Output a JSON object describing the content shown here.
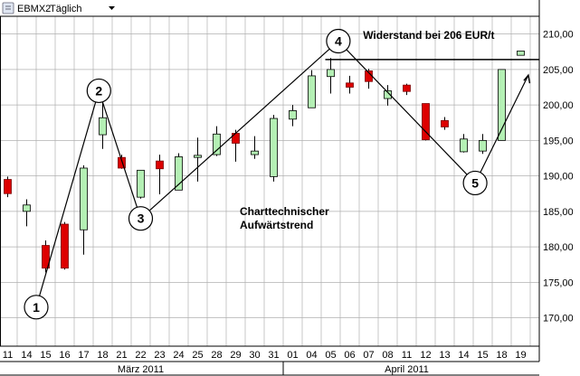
{
  "chart_data": {
    "type": "candlestick",
    "header": {
      "symbol": "EBMX2",
      "interval": "Täglich",
      "dropdown_icon": "triangle-down-icon"
    },
    "y_axis": {
      "min": 166.0,
      "max": 212.5,
      "position": "right",
      "ticks": [
        210,
        205,
        200,
        195,
        190,
        185,
        180,
        175,
        170
      ],
      "tick_labels": [
        "210,00",
        "205,00",
        "200,00",
        "195,00",
        "190,00",
        "185,00",
        "180,00",
        "175,00",
        "170,00"
      ]
    },
    "x_axis": {
      "day_labels": [
        "11",
        "14",
        "15",
        "16",
        "17",
        "18",
        "21",
        "22",
        "23",
        "24",
        "25",
        "28",
        "29",
        "30",
        "31",
        "01",
        "04",
        "05",
        "06",
        "07",
        "08",
        "11",
        "12",
        "13",
        "14",
        "15",
        "18",
        "19"
      ],
      "months": [
        {
          "label": "März 2011",
          "start_index": 0,
          "end_index": 14
        },
        {
          "label": "April 2011",
          "start_index": 15,
          "end_index": 27
        }
      ]
    },
    "grid": true,
    "colors": {
      "up": "#b4f0b4",
      "down": "#dd0000",
      "outline": "#000000",
      "grid": "#b0b0b0"
    },
    "candles": [
      {
        "date": "11",
        "open": 189.5,
        "high": 189.9,
        "low": 187.0,
        "close": 187.5
      },
      {
        "date": "14",
        "open": 185.0,
        "high": 186.7,
        "low": 182.9,
        "close": 185.9
      },
      {
        "date": "15",
        "open": 180.2,
        "high": 180.9,
        "low": 176.4,
        "close": 177.0
      },
      {
        "date": "16",
        "open": 183.2,
        "high": 183.5,
        "low": 176.8,
        "close": 177.0
      },
      {
        "date": "17",
        "open": 182.4,
        "high": 191.5,
        "low": 178.9,
        "close": 191.1
      },
      {
        "date": "18",
        "open": 195.8,
        "high": 201.0,
        "low": 193.8,
        "close": 198.2
      },
      {
        "date": "21",
        "open": 192.6,
        "high": 193.0,
        "low": 191.0,
        "close": 191.1
      },
      {
        "date": "22",
        "open": 187.0,
        "high": 190.8,
        "low": 186.8,
        "close": 190.8
      },
      {
        "date": "23",
        "open": 192.1,
        "high": 193.0,
        "low": 187.4,
        "close": 191.0
      },
      {
        "date": "24",
        "open": 188.0,
        "high": 193.2,
        "low": 188.0,
        "close": 192.7
      },
      {
        "date": "25",
        "open": 192.6,
        "high": 195.4,
        "low": 189.2,
        "close": 192.9
      },
      {
        "date": "28",
        "open": 193.0,
        "high": 197.0,
        "low": 192.8,
        "close": 195.9
      },
      {
        "date": "29",
        "open": 196.0,
        "high": 196.5,
        "low": 192.0,
        "close": 194.6
      },
      {
        "date": "30",
        "open": 193.0,
        "high": 195.6,
        "low": 192.4,
        "close": 193.5
      },
      {
        "date": "31",
        "open": 189.9,
        "high": 198.6,
        "low": 189.2,
        "close": 198.1
      },
      {
        "date": "01",
        "open": 198.0,
        "high": 200.0,
        "low": 197.0,
        "close": 199.2
      },
      {
        "date": "04",
        "open": 199.6,
        "high": 204.9,
        "low": 199.6,
        "close": 204.1
      },
      {
        "date": "05",
        "open": 204.0,
        "high": 206.6,
        "low": 201.6,
        "close": 205.0
      },
      {
        "date": "06",
        "open": 203.1,
        "high": 204.1,
        "low": 201.6,
        "close": 202.5
      },
      {
        "date": "07",
        "open": 204.8,
        "high": 205.1,
        "low": 202.3,
        "close": 203.3
      },
      {
        "date": "08",
        "open": 200.9,
        "high": 202.8,
        "low": 199.9,
        "close": 202.0
      },
      {
        "date": "11",
        "open": 202.8,
        "high": 203.0,
        "low": 201.4,
        "close": 201.9
      },
      {
        "date": "12",
        "open": 200.2,
        "high": 200.2,
        "low": 195.0,
        "close": 195.1
      },
      {
        "date": "13",
        "open": 197.8,
        "high": 198.3,
        "low": 196.5,
        "close": 196.9
      },
      {
        "date": "14",
        "open": 193.4,
        "high": 195.9,
        "low": 193.3,
        "close": 195.2
      },
      {
        "date": "15",
        "open": 193.5,
        "high": 195.9,
        "low": 193.1,
        "close": 195.0
      },
      {
        "date": "18",
        "open": 195.0,
        "high": 205.0,
        "low": 195.0,
        "close": 205.0
      },
      {
        "date": "19",
        "open": 207.0,
        "high": 207.6,
        "low": 207.0,
        "close": 207.6
      }
    ],
    "resistance": {
      "label": "Widerstand bei 206 EUR/t",
      "value": 206.4,
      "from_index": 17,
      "to_index": 27
    },
    "annotation": {
      "line1": "Charttechnischer",
      "line2": "Aufwärtstrend",
      "x_index": 16.5,
      "y_value": 184.5
    },
    "trend_path": [
      {
        "label": "1",
        "x_index": 1.5,
        "y_value": 171.5
      },
      {
        "label": "2",
        "x_index": 4.8,
        "y_value": 202.0
      },
      {
        "label": "3",
        "x_index": 7.0,
        "y_value": 184.0
      },
      {
        "label": "4",
        "x_index": 17.4,
        "y_value": 209.0
      },
      {
        "label": "5",
        "x_index": 24.6,
        "y_value": 189.0
      },
      {
        "label": "",
        "x_index": 27.4,
        "y_value": 204.2
      }
    ]
  }
}
